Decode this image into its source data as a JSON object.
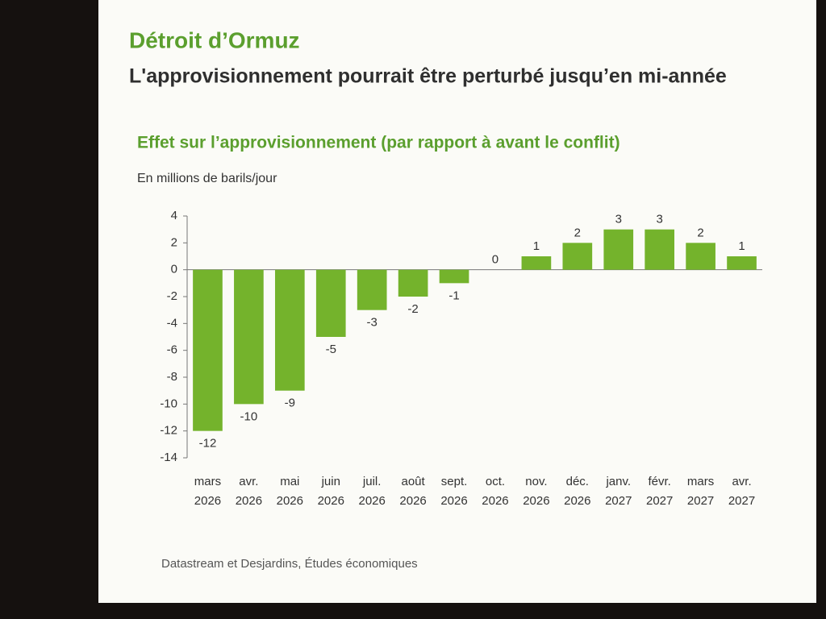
{
  "slide": {
    "title": "Détroit d’Ormuz",
    "subtitle": "L'approvisionnement pourrait être perturbé jusqu’en mi-année"
  },
  "chart_data": {
    "type": "bar",
    "title": "Effet sur l’approvisionnement (par rapport à avant le conflit)",
    "y_label": "En millions de barils/jour",
    "source": "Datastream et Desjardins, Études économiques",
    "categories": [
      "mars 2026",
      "avr. 2026",
      "mai 2026",
      "juin 2026",
      "juil. 2026",
      "août 2026",
      "sept. 2026",
      "oct. 2026",
      "nov. 2026",
      "déc. 2026",
      "janv. 2027",
      "févr. 2027",
      "mars 2027",
      "avr. 2027"
    ],
    "values": [
      -12,
      -10,
      -9,
      -5,
      -3,
      -2,
      -1,
      0,
      1,
      2,
      3,
      3,
      2,
      1
    ],
    "color": "#74b32c",
    "ylim": [
      -14,
      4
    ],
    "yticks": [
      -14,
      -12,
      -10,
      -8,
      -6,
      -4,
      -2,
      0,
      2,
      4
    ],
    "grid": false
  }
}
